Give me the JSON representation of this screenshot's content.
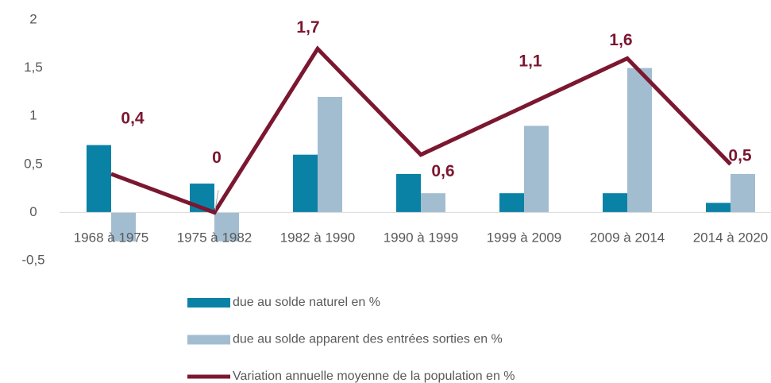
{
  "chart_data": {
    "type": "bar_line",
    "categories": [
      "1968 à 1975",
      "1975 à 1982",
      "1982 à 1990",
      "1990 à 1999",
      "1999 à 2009",
      "2009 à 2014",
      "2014 à 2020"
    ],
    "series": [
      {
        "name": "due au solde naturel en %",
        "type": "bar",
        "color": "#0a82a6",
        "values": [
          0.7,
          0.3,
          0.6,
          0.4,
          0.2,
          0.2,
          0.1
        ]
      },
      {
        "name": "due au solde apparent des entrées sorties en %",
        "type": "bar",
        "color": "#a3bdd0",
        "values": [
          -0.3,
          -0.3,
          1.2,
          0.2,
          0.9,
          1.5,
          0.4
        ]
      },
      {
        "name": "Variation annuelle moyenne de la population en %",
        "type": "line",
        "color": "#7b1730",
        "values": [
          0.4,
          0,
          1.7,
          0.6,
          1.1,
          1.6,
          0.5
        ],
        "value_labels": [
          "0,4",
          "0",
          "1,7",
          "0,6",
          "1,1",
          "1,6",
          "0,5"
        ]
      }
    ],
    "ylim": [
      -0.5,
      2
    ],
    "yticks": [
      {
        "value": -0.5,
        "label": "-0,5"
      },
      0,
      {
        "value": 0.5,
        "label": "0,5"
      },
      1,
      {
        "value": 1.5,
        "label": "1,5"
      },
      2
    ],
    "legend": "bottom"
  }
}
